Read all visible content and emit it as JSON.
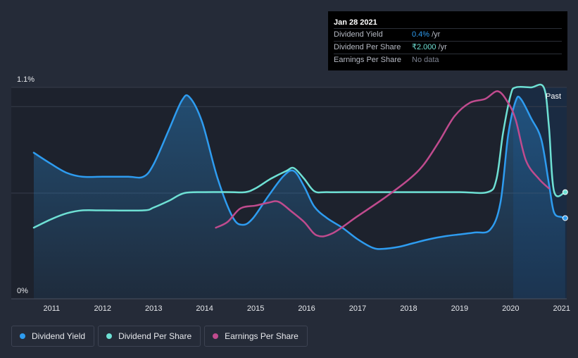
{
  "chart_data": {
    "type": "line",
    "title": "",
    "xlabel": "",
    "ylabel": "",
    "x_ticks": [
      "2011",
      "2012",
      "2013",
      "2014",
      "2015",
      "2016",
      "2017",
      "2018",
      "2019",
      "2020",
      "2021"
    ],
    "y_ticks": [
      "1.1%",
      "0%"
    ],
    "ylim": [
      0,
      1.1
    ],
    "xlim": [
      2010.65,
      2021.1
    ],
    "past_label": "Past",
    "past_from": 2020.05,
    "series": [
      {
        "name": "Dividend Yield",
        "color": "#2e9cf0",
        "points": [
          [
            2010.65,
            0.76
          ],
          [
            2011.0,
            0.7
          ],
          [
            2011.3,
            0.655
          ],
          [
            2011.6,
            0.635
          ],
          [
            2012.0,
            0.635
          ],
          [
            2012.5,
            0.635
          ],
          [
            2012.8,
            0.635
          ],
          [
            2013.0,
            0.7
          ],
          [
            2013.3,
            0.88
          ],
          [
            2013.55,
            1.03
          ],
          [
            2013.7,
            1.05
          ],
          [
            2013.95,
            0.92
          ],
          [
            2014.25,
            0.63
          ],
          [
            2014.55,
            0.425
          ],
          [
            2014.75,
            0.385
          ],
          [
            2014.95,
            0.42
          ],
          [
            2015.25,
            0.535
          ],
          [
            2015.55,
            0.64
          ],
          [
            2015.75,
            0.665
          ],
          [
            2015.95,
            0.585
          ],
          [
            2016.15,
            0.48
          ],
          [
            2016.4,
            0.42
          ],
          [
            2016.7,
            0.37
          ],
          [
            2017.0,
            0.31
          ],
          [
            2017.3,
            0.265
          ],
          [
            2017.5,
            0.26
          ],
          [
            2017.8,
            0.27
          ],
          [
            2018.1,
            0.29
          ],
          [
            2018.4,
            0.31
          ],
          [
            2018.7,
            0.325
          ],
          [
            2019.0,
            0.335
          ],
          [
            2019.3,
            0.345
          ],
          [
            2019.6,
            0.36
          ],
          [
            2019.8,
            0.5
          ],
          [
            2019.95,
            0.85
          ],
          [
            2020.1,
            1.03
          ],
          [
            2020.2,
            1.04
          ],
          [
            2020.4,
            0.94
          ],
          [
            2020.6,
            0.83
          ],
          [
            2020.75,
            0.6
          ],
          [
            2020.85,
            0.45
          ],
          [
            2021.0,
            0.425
          ],
          [
            2021.07,
            0.42
          ]
        ],
        "last_value": "0.4%",
        "unit": "/yr"
      },
      {
        "name": "Dividend Per Share",
        "color": "#6ee0d4",
        "points": [
          [
            2010.65,
            0.37
          ],
          [
            2011.0,
            0.415
          ],
          [
            2011.3,
            0.445
          ],
          [
            2011.6,
            0.46
          ],
          [
            2012.0,
            0.46
          ],
          [
            2012.8,
            0.46
          ],
          [
            2013.0,
            0.475
          ],
          [
            2013.3,
            0.51
          ],
          [
            2013.6,
            0.55
          ],
          [
            2014.0,
            0.555
          ],
          [
            2014.5,
            0.555
          ],
          [
            2014.8,
            0.555
          ],
          [
            2015.0,
            0.575
          ],
          [
            2015.3,
            0.625
          ],
          [
            2015.6,
            0.665
          ],
          [
            2015.75,
            0.68
          ],
          [
            2015.95,
            0.625
          ],
          [
            2016.15,
            0.56
          ],
          [
            2016.4,
            0.555
          ],
          [
            2017.0,
            0.555
          ],
          [
            2018.0,
            0.555
          ],
          [
            2019.0,
            0.555
          ],
          [
            2019.55,
            0.555
          ],
          [
            2019.72,
            0.62
          ],
          [
            2019.85,
            0.86
          ],
          [
            2020.0,
            1.06
          ],
          [
            2020.1,
            1.1
          ],
          [
            2020.4,
            1.1
          ],
          [
            2020.65,
            1.1
          ],
          [
            2020.75,
            0.9
          ],
          [
            2020.85,
            0.56
          ],
          [
            2021.07,
            0.555
          ]
        ],
        "last_value": "₹2.000",
        "unit": "/yr"
      },
      {
        "name": "Earnings Per Share",
        "color": "#c04b8e",
        "points": [
          [
            2014.22,
            0.37
          ],
          [
            2014.45,
            0.4
          ],
          [
            2014.7,
            0.47
          ],
          [
            2015.0,
            0.485
          ],
          [
            2015.25,
            0.5
          ],
          [
            2015.45,
            0.505
          ],
          [
            2015.7,
            0.455
          ],
          [
            2015.95,
            0.4
          ],
          [
            2016.2,
            0.33
          ],
          [
            2016.5,
            0.34
          ],
          [
            2017.0,
            0.43
          ],
          [
            2017.5,
            0.52
          ],
          [
            2018.0,
            0.62
          ],
          [
            2018.3,
            0.7
          ],
          [
            2018.6,
            0.82
          ],
          [
            2018.9,
            0.95
          ],
          [
            2019.2,
            1.02
          ],
          [
            2019.5,
            1.04
          ],
          [
            2019.75,
            1.08
          ],
          [
            2019.95,
            1.02
          ],
          [
            2020.1,
            0.93
          ],
          [
            2020.3,
            0.72
          ],
          [
            2020.55,
            0.625
          ],
          [
            2020.75,
            0.575
          ]
        ],
        "last_value": "No data",
        "unit": ""
      }
    ]
  },
  "tooltip": {
    "date": "Jan 28 2021",
    "rows": [
      {
        "label": "Dividend Yield",
        "value": "0.4%",
        "unit": "/yr"
      },
      {
        "label": "Dividend Per Share",
        "value": "₹2.000",
        "unit": "/yr"
      },
      {
        "label": "Earnings Per Share",
        "value": "No data",
        "unit": ""
      }
    ]
  },
  "legend": [
    {
      "label": "Dividend Yield",
      "color": "#2e9cf0"
    },
    {
      "label": "Dividend Per Share",
      "color": "#6ee0d4"
    },
    {
      "label": "Earnings Per Share",
      "color": "#c04b8e"
    }
  ]
}
